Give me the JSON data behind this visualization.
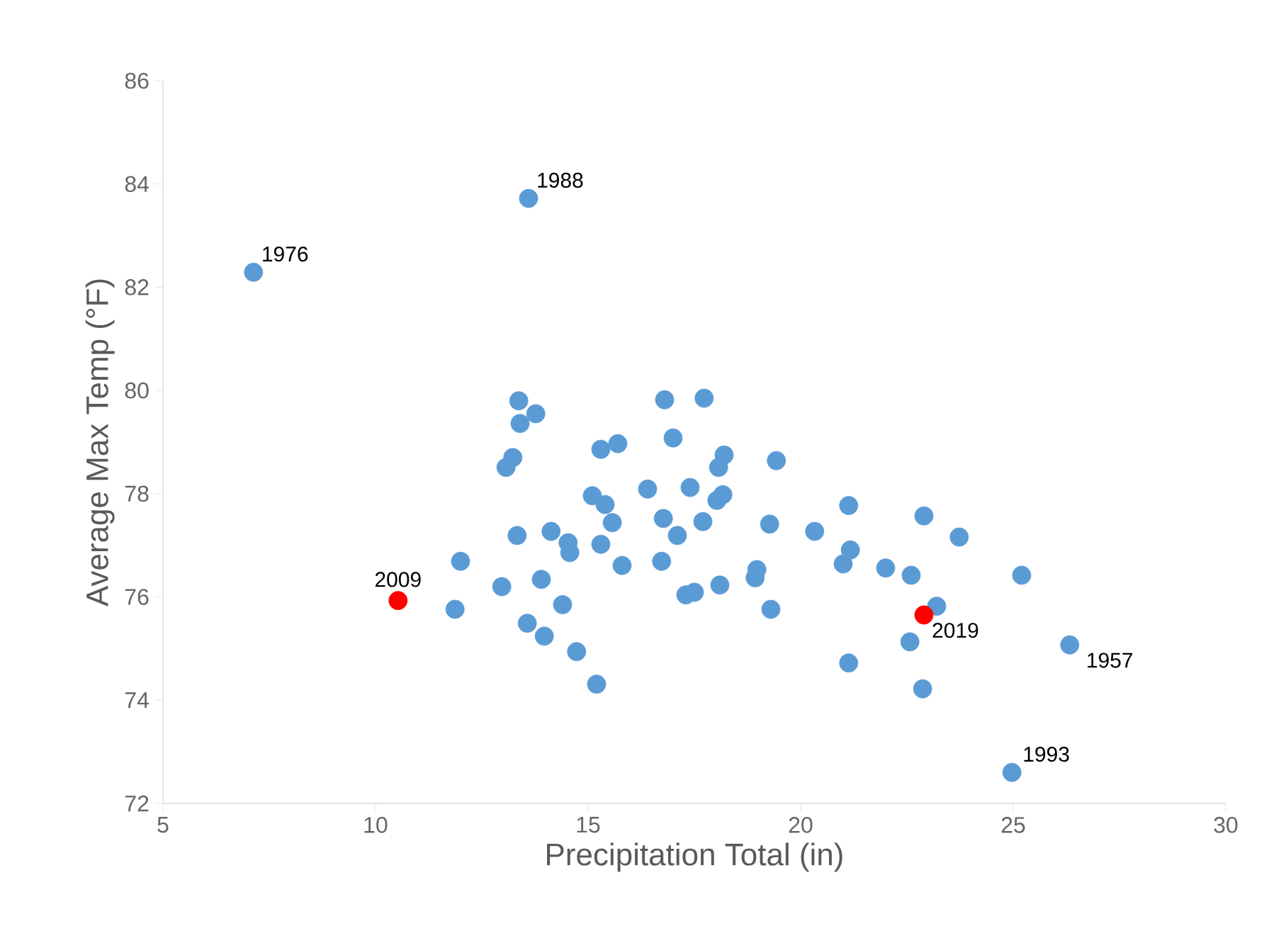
{
  "chart_data": {
    "type": "scatter",
    "xlabel": "Precipitation Total (in)",
    "ylabel": "Average Max Temp (°F)",
    "xlim": [
      5,
      30
    ],
    "xticks": [
      5,
      10,
      15,
      20,
      25,
      30
    ],
    "ylim": [
      72,
      86
    ],
    "yticks": [
      72,
      74,
      76,
      78,
      80,
      82,
      84,
      86
    ],
    "grid": false,
    "marker": "circle",
    "series": [
      {
        "color": "#5b9bd5",
        "x": [
          7.13,
          13.6,
          26.33,
          24.97,
          13.37,
          13.77,
          13.4,
          13.23,
          13.07,
          16.8,
          17.73,
          17.0,
          15.7,
          15.3,
          18.2,
          19.43,
          18.07,
          16.4,
          17.4,
          15.1,
          18.17,
          18.03,
          15.4,
          21.13,
          22.9,
          23.73,
          16.77,
          15.57,
          17.7,
          19.27,
          14.13,
          13.33,
          17.1,
          20.33,
          14.53,
          15.3,
          14.57,
          21.17,
          12.0,
          21.0,
          22.0,
          22.6,
          25.2,
          18.97,
          18.93,
          16.73,
          15.8,
          13.9,
          12.97,
          18.1,
          17.3,
          17.5,
          14.4,
          11.87,
          19.3,
          13.57,
          23.2,
          13.97,
          14.73,
          22.57,
          21.13,
          15.2,
          22.87
        ],
        "values": [
          82.29,
          83.72,
          75.07,
          72.6,
          79.8,
          79.55,
          79.36,
          78.7,
          78.51,
          79.82,
          79.85,
          79.08,
          78.97,
          78.86,
          78.75,
          78.64,
          78.51,
          78.09,
          78.12,
          77.96,
          77.98,
          77.87,
          77.79,
          77.77,
          77.57,
          77.16,
          77.52,
          77.44,
          77.46,
          77.41,
          77.27,
          77.19,
          77.19,
          77.27,
          77.05,
          77.02,
          76.86,
          76.91,
          76.69,
          76.64,
          76.56,
          76.42,
          76.42,
          76.53,
          76.37,
          76.69,
          76.61,
          76.34,
          76.2,
          76.23,
          76.04,
          76.09,
          75.85,
          75.76,
          75.76,
          75.49,
          75.82,
          75.24,
          74.94,
          75.13,
          74.72,
          74.31,
          74.22
        ]
      },
      {
        "color": "#ff0000",
        "x": [
          10.53,
          22.9
        ],
        "values": [
          75.93,
          75.65
        ]
      }
    ],
    "annotations": [
      {
        "text": "1976",
        "x": 7.13,
        "y": 82.29
      },
      {
        "text": "1988",
        "x": 13.6,
        "y": 83.72
      },
      {
        "text": "2009",
        "x": 10.53,
        "y": 75.93
      },
      {
        "text": "2019",
        "x": 22.9,
        "y": 75.65
      },
      {
        "text": "1957",
        "x": 26.33,
        "y": 75.07
      },
      {
        "text": "1993",
        "x": 24.97,
        "y": 72.6
      }
    ]
  }
}
